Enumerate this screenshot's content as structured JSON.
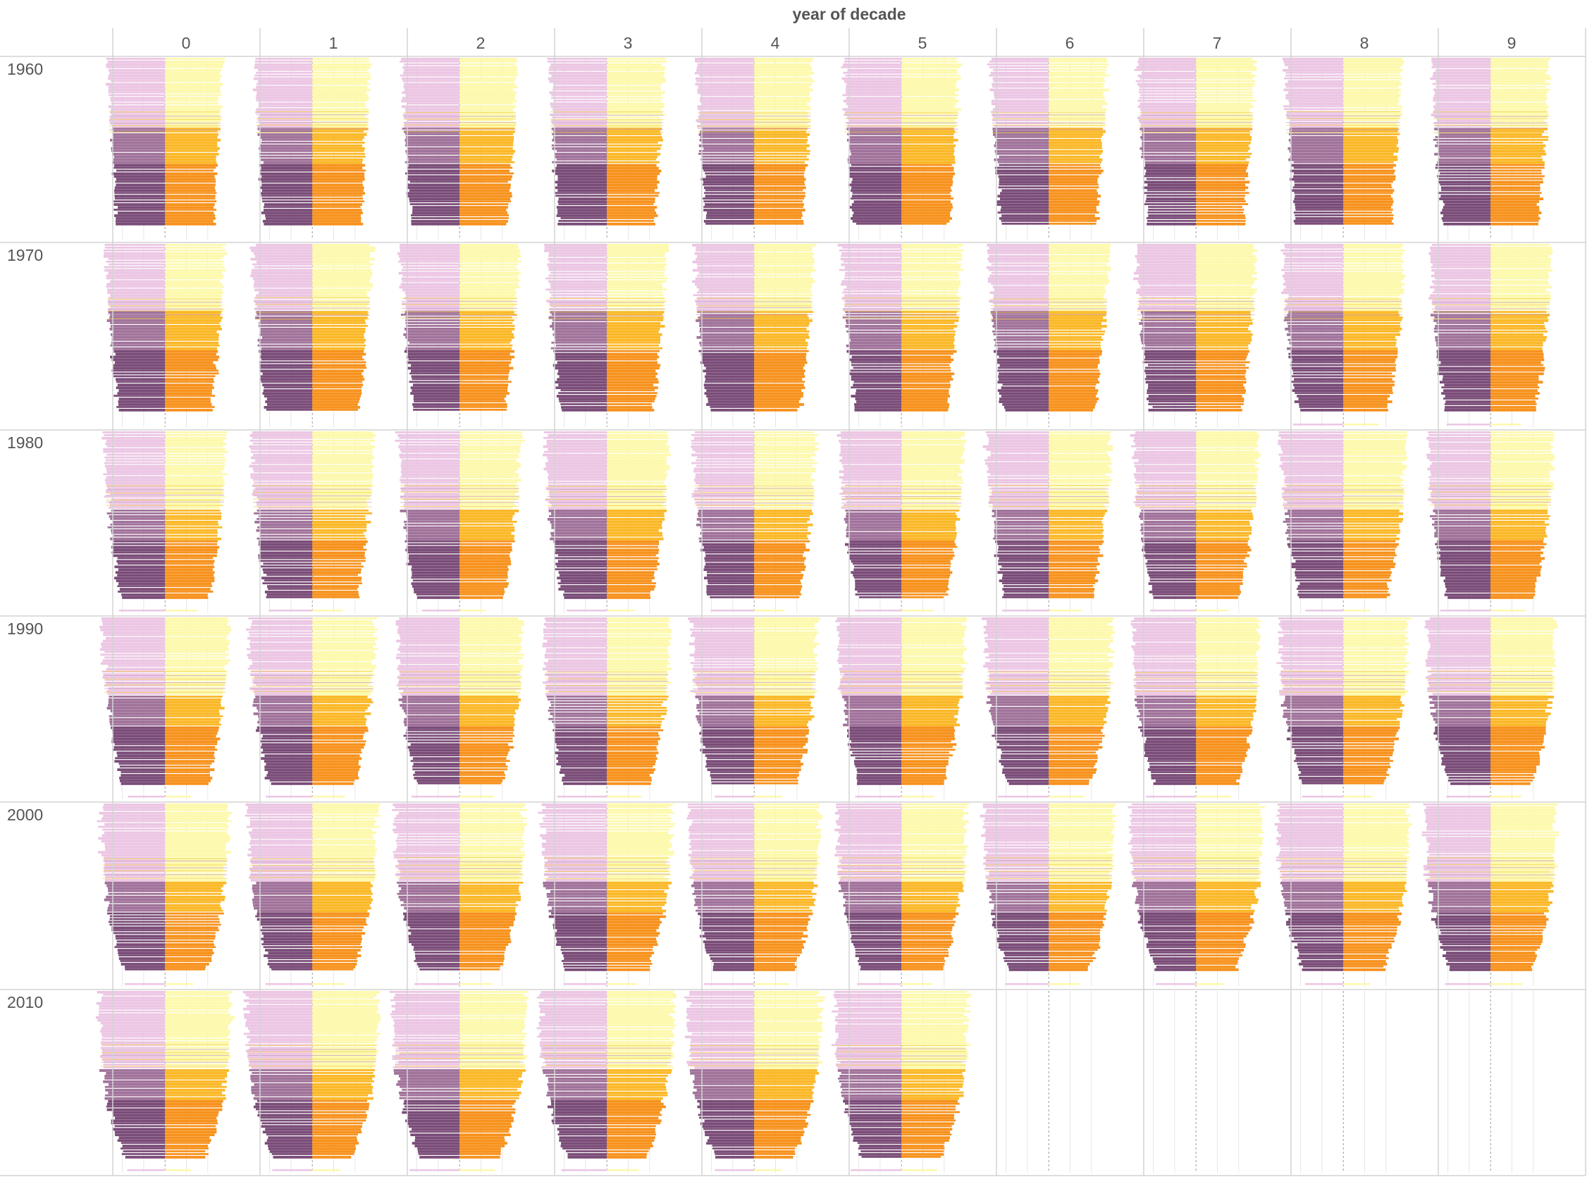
{
  "chart_data": {
    "type": "bar",
    "chart_kind": "small-multiples population pyramids (diverging horizontal bars)",
    "title": "year of decade",
    "column_header_label": "year of decade",
    "columns": [
      "0",
      "1",
      "2",
      "3",
      "4",
      "5",
      "6",
      "7",
      "8",
      "9"
    ],
    "rows": [
      "1960",
      "1970",
      "1980",
      "1990",
      "2000",
      "2010"
    ],
    "last_year_shown": "2015",
    "grid": true,
    "legend": "none",
    "colors": {
      "left_light": "#ecc6e4",
      "left_medium": "#a0729a",
      "left_dark": "#7a4c78",
      "right_light": "#fdf9ad",
      "right_medium": "#fbb827",
      "right_dark": "#f7921d",
      "center_line": "#9a9a9a",
      "grid_line": "#e6e6e6",
      "panel_border": "#d4d4d4"
    },
    "bands": [
      "light",
      "medium",
      "dark"
    ],
    "band_share_by_decade": {
      "1960": [
        0.41,
        0.22,
        0.37
      ],
      "1970": [
        0.4,
        0.24,
        0.36
      ],
      "1980": [
        0.47,
        0.19,
        0.34
      ],
      "1990": [
        0.47,
        0.18,
        0.35
      ],
      "2000": [
        0.47,
        0.18,
        0.35
      ],
      "2010": [
        0.47,
        0.19,
        0.34
      ]
    }
  },
  "labels": {
    "header_title": "year of decade",
    "col_0": "0",
    "col_1": "1",
    "col_2": "2",
    "col_3": "3",
    "col_4": "4",
    "col_5": "5",
    "col_6": "6",
    "col_7": "7",
    "col_8": "8",
    "col_9": "9",
    "row_1960": "1960",
    "row_1970": "1970",
    "row_1980": "1980",
    "row_1990": "1990",
    "row_2000": "2000",
    "row_2010": "2010"
  }
}
